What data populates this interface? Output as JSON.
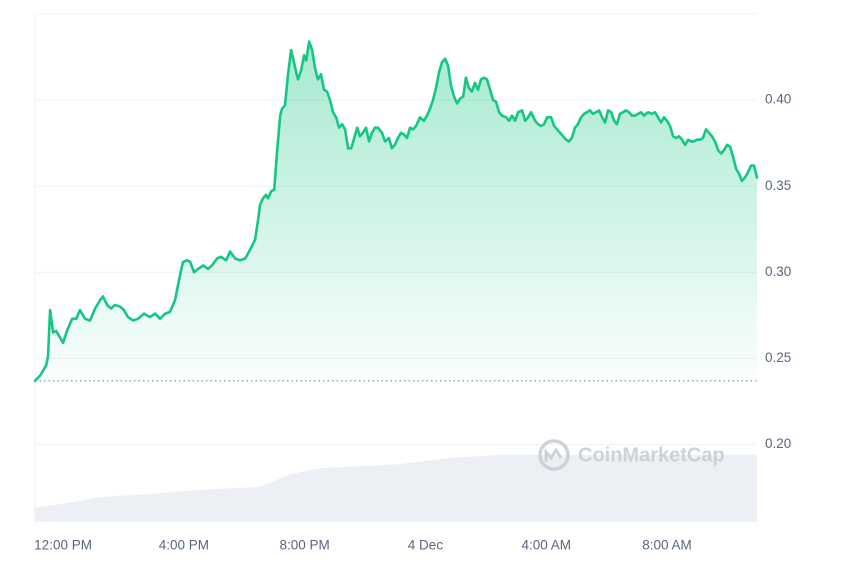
{
  "chart_data": {
    "type": "line",
    "color": "#16c784",
    "grid": true,
    "watermark": "CoinMarketCap",
    "baseline": 0.237,
    "xlim": [
      -0.93,
      22.98
    ],
    "xticks": [
      {
        "value": 0,
        "label": "12:00 PM"
      },
      {
        "value": 4,
        "label": "4:00 PM"
      },
      {
        "value": 8,
        "label": "8:00 PM"
      },
      {
        "value": 12,
        "label": "4 Dec"
      },
      {
        "value": 16,
        "label": "4:00 AM"
      },
      {
        "value": 20,
        "label": "8:00 AM"
      }
    ],
    "ylim": [
      0.155,
      0.45
    ],
    "yticks": [
      {
        "value": 0.2,
        "label": "0.20"
      },
      {
        "value": 0.25,
        "label": "0.25"
      },
      {
        "value": 0.3,
        "label": "0.30"
      },
      {
        "value": 0.35,
        "label": "0.35"
      },
      {
        "value": 0.4,
        "label": "0.40"
      }
    ],
    "x": [
      -0.93,
      -0.76,
      -0.56,
      -0.5,
      -0.43,
      -0.33,
      -0.23,
      -0.1,
      0,
      0.13,
      0.3,
      0.43,
      0.56,
      0.73,
      0.89,
      1.06,
      1.23,
      1.32,
      1.46,
      1.59,
      1.72,
      1.89,
      2.02,
      2.15,
      2.32,
      2.48,
      2.68,
      2.88,
      3.05,
      3.21,
      3.38,
      3.54,
      3.71,
      3.87,
      3.97,
      4.11,
      4.21,
      4.34,
      4.47,
      4.64,
      4.8,
      4.93,
      5.1,
      5.23,
      5.4,
      5.53,
      5.7,
      5.86,
      6.03,
      6.19,
      6.36,
      6.46,
      6.52,
      6.62,
      6.72,
      6.79,
      6.89,
      6.99,
      7.09,
      7.19,
      7.25,
      7.35,
      7.45,
      7.55,
      7.62,
      7.72,
      7.78,
      7.88,
      7.98,
      8.05,
      8.15,
      8.25,
      8.34,
      8.44,
      8.54,
      8.64,
      8.74,
      8.84,
      8.94,
      9.04,
      9.14,
      9.24,
      9.34,
      9.44,
      9.54,
      9.64,
      9.74,
      9.83,
      9.93,
      10.03,
      10.13,
      10.23,
      10.33,
      10.43,
      10.56,
      10.66,
      10.79,
      10.89,
      10.99,
      11.09,
      11.19,
      11.29,
      11.39,
      11.49,
      11.59,
      11.69,
      11.82,
      11.95,
      12.05,
      12.15,
      12.25,
      12.35,
      12.45,
      12.55,
      12.65,
      12.75,
      12.85,
      12.95,
      13.05,
      13.15,
      13.25,
      13.34,
      13.44,
      13.54,
      13.64,
      13.74,
      13.84,
      13.94,
      14.04,
      14.14,
      14.24,
      14.34,
      14.44,
      14.54,
      14.67,
      14.77,
      14.87,
      14.97,
      15.07,
      15.2,
      15.3,
      15.4,
      15.5,
      15.63,
      15.73,
      15.83,
      15.93,
      16.03,
      16.16,
      16.26,
      16.36,
      16.46,
      16.56,
      16.66,
      16.75,
      16.85,
      16.95,
      17.05,
      17.15,
      17.25,
      17.35,
      17.45,
      17.55,
      17.65,
      17.75,
      17.85,
      17.95,
      18.05,
      18.15,
      18.25,
      18.34,
      18.44,
      18.54,
      18.64,
      18.74,
      18.84,
      18.94,
      19.04,
      19.14,
      19.24,
      19.37,
      19.5,
      19.6,
      19.7,
      19.8,
      19.9,
      20.0,
      20.1,
      20.2,
      20.3,
      20.4,
      20.5,
      20.6,
      20.7,
      20.79,
      20.89,
      20.99,
      21.09,
      21.19,
      21.29,
      21.39,
      21.49,
      21.59,
      21.69,
      21.79,
      21.89,
      21.99,
      22.09,
      22.19,
      22.29,
      22.39,
      22.48,
      22.58,
      22.68,
      22.78,
      22.88,
      22.98
    ],
    "values": [
      0.237,
      0.24,
      0.246,
      0.251,
      0.278,
      0.265,
      0.266,
      0.262,
      0.259,
      0.266,
      0.273,
      0.273,
      0.278,
      0.273,
      0.272,
      0.279,
      0.284,
      0.286,
      0.281,
      0.279,
      0.281,
      0.28,
      0.278,
      0.274,
      0.272,
      0.273,
      0.276,
      0.274,
      0.276,
      0.273,
      0.276,
      0.277,
      0.284,
      0.298,
      0.306,
      0.307,
      0.306,
      0.3,
      0.302,
      0.304,
      0.302,
      0.304,
      0.308,
      0.309,
      0.307,
      0.312,
      0.308,
      0.307,
      0.308,
      0.313,
      0.319,
      0.331,
      0.339,
      0.343,
      0.345,
      0.343,
      0.347,
      0.348,
      0.371,
      0.391,
      0.395,
      0.397,
      0.415,
      0.429,
      0.424,
      0.416,
      0.412,
      0.417,
      0.426,
      0.423,
      0.434,
      0.429,
      0.419,
      0.412,
      0.415,
      0.406,
      0.405,
      0.4,
      0.393,
      0.39,
      0.384,
      0.386,
      0.383,
      0.372,
      0.372,
      0.378,
      0.384,
      0.379,
      0.381,
      0.384,
      0.376,
      0.381,
      0.384,
      0.384,
      0.381,
      0.376,
      0.378,
      0.372,
      0.374,
      0.378,
      0.381,
      0.38,
      0.378,
      0.384,
      0.383,
      0.385,
      0.39,
      0.388,
      0.391,
      0.395,
      0.4,
      0.407,
      0.416,
      0.422,
      0.424,
      0.42,
      0.408,
      0.402,
      0.398,
      0.401,
      0.402,
      0.413,
      0.407,
      0.405,
      0.41,
      0.406,
      0.412,
      0.413,
      0.412,
      0.406,
      0.4,
      0.399,
      0.393,
      0.391,
      0.39,
      0.388,
      0.391,
      0.388,
      0.393,
      0.394,
      0.388,
      0.39,
      0.393,
      0.388,
      0.386,
      0.385,
      0.386,
      0.39,
      0.39,
      0.385,
      0.383,
      0.381,
      0.379,
      0.377,
      0.376,
      0.378,
      0.384,
      0.386,
      0.39,
      0.392,
      0.393,
      0.394,
      0.392,
      0.393,
      0.394,
      0.39,
      0.387,
      0.394,
      0.393,
      0.388,
      0.386,
      0.392,
      0.393,
      0.394,
      0.393,
      0.391,
      0.391,
      0.392,
      0.393,
      0.391,
      0.393,
      0.392,
      0.393,
      0.39,
      0.387,
      0.39,
      0.388,
      0.385,
      0.379,
      0.378,
      0.379,
      0.377,
      0.374,
      0.377,
      0.376,
      0.376,
      0.377,
      0.377,
      0.378,
      0.383,
      0.381,
      0.379,
      0.376,
      0.371,
      0.369,
      0.371,
      0.374,
      0.373,
      0.367,
      0.36,
      0.357,
      0.353,
      0.355,
      0.358,
      0.362,
      0.362,
      0.355
    ],
    "volume": {
      "color": "#eceff3",
      "ylim": [
        0,
        100
      ],
      "x": [
        -0.93,
        -0.1,
        1.23,
        2.88,
        4.54,
        6.52,
        7.52,
        8.51,
        11.16,
        12.81,
        14.47,
        22.98
      ],
      "values": [
        2.8,
        3.5,
        4.9,
        5.5,
        6.3,
        6.9,
        9.4,
        10.6,
        11.4,
        12.6,
        13.2,
        13.2
      ]
    }
  }
}
